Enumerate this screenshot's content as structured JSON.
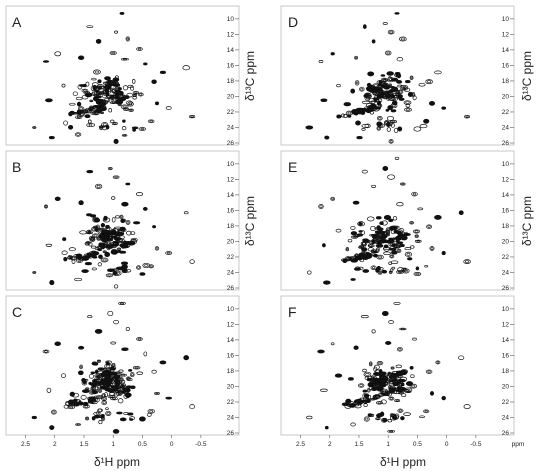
{
  "figure": {
    "x_axis_label": "δ¹H ppm",
    "y_axis_label": "δ¹³C ppm",
    "x_unit_label": "ppm"
  },
  "chart_data": [
    {
      "type": "scatter",
      "panel": "A",
      "xlabel": "",
      "ylabel": "δ¹³C ppm",
      "xlim": [
        2.8,
        -1.05
      ],
      "ylim": [
        26,
        8.6
      ],
      "y_ticks": [
        10,
        12,
        14,
        16,
        18,
        20,
        22,
        24,
        26
      ],
      "x_ticks": [],
      "grid": false,
      "density": 0.8,
      "points": []
    },
    {
      "type": "scatter",
      "panel": "B",
      "xlabel": "",
      "ylabel": "δ¹³C ppm",
      "xlim": [
        2.8,
        -1.05
      ],
      "ylim": [
        26,
        8.6
      ],
      "y_ticks": [
        10,
        12,
        14,
        16,
        18,
        20,
        22,
        24,
        26
      ],
      "x_ticks": [],
      "grid": false,
      "density": 0.85,
      "points": []
    },
    {
      "type": "scatter",
      "panel": "C",
      "xlabel": "δ¹H ppm",
      "ylabel": "",
      "xlim": [
        2.8,
        -1.05
      ],
      "ylim": [
        26,
        8.6
      ],
      "y_ticks": [
        10,
        12,
        14,
        16,
        18,
        20,
        22,
        24,
        26
      ],
      "x_ticks": [
        2.5,
        2.0,
        1.5,
        1.0,
        0.5,
        0,
        -0.5
      ],
      "grid": false,
      "density": 1.0,
      "points": []
    },
    {
      "type": "scatter",
      "panel": "D",
      "xlabel": "",
      "ylabel": "δ¹³C ppm",
      "xlim": [
        2.8,
        -1.05
      ],
      "ylim": [
        26,
        8.6
      ],
      "y_ticks": [
        10,
        12,
        14,
        16,
        18,
        20,
        22,
        24,
        26
      ],
      "x_ticks": [],
      "grid": false,
      "density": 0.8,
      "points": []
    },
    {
      "type": "scatter",
      "panel": "E",
      "xlabel": "",
      "ylabel": "δ¹³C ppm",
      "xlim": [
        2.8,
        -1.05
      ],
      "ylim": [
        26,
        8.6
      ],
      "y_ticks": [
        10,
        12,
        14,
        16,
        18,
        20,
        22,
        24,
        26
      ],
      "x_ticks": [],
      "grid": false,
      "density": 0.85,
      "points": []
    },
    {
      "type": "scatter",
      "panel": "F",
      "xlabel": "δ¹H ppm",
      "ylabel": "",
      "xlim": [
        2.8,
        -1.05
      ],
      "ylim": [
        26,
        8.6
      ],
      "y_ticks": [
        10,
        12,
        14,
        16,
        18,
        20,
        22,
        24,
        26
      ],
      "x_ticks": [
        2.5,
        2.0,
        1.5,
        1.0,
        0.5,
        0,
        -0.5
      ],
      "x_unit": "ppm",
      "grid": false,
      "density": 0.9,
      "points": []
    }
  ]
}
